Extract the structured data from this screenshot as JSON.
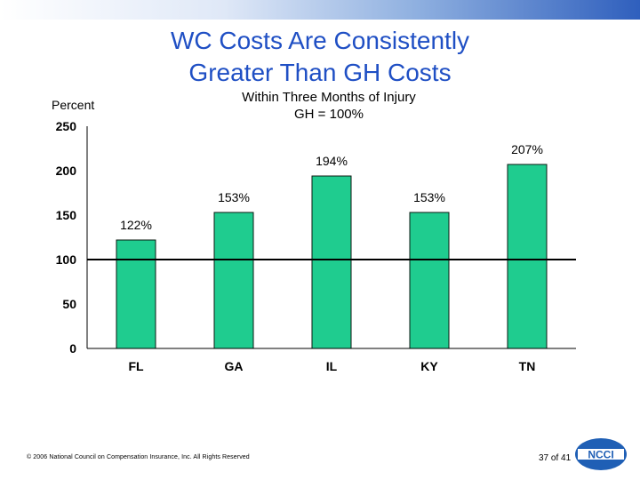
{
  "title_line1": "WC Costs Are Consistently",
  "title_line2": "Greater Than GH Costs",
  "subtitle_line1": "Within Three Months of Injury",
  "subtitle_line2": "GH = 100%",
  "y_axis_unit": "Percent",
  "footer": "© 2006 National Council on Compensation Insurance, Inc. All Rights Reserved",
  "page_number": "37 of 41",
  "logo_text": "NCCI",
  "colors": {
    "title": "#1f4fc4",
    "bar_fill": "#1fcc8f",
    "bar_stroke": "#0b1a12",
    "reference_line": "#000000",
    "logo": "#1f5fb5"
  },
  "chart_data": {
    "type": "bar",
    "categories": [
      "FL",
      "GA",
      "IL",
      "KY",
      "TN"
    ],
    "values": [
      122,
      153,
      194,
      153,
      207
    ],
    "data_labels": [
      "122%",
      "153%",
      "194%",
      "153%",
      "207%"
    ],
    "ylim": [
      0,
      250
    ],
    "yticks": [
      0,
      50,
      100,
      150,
      200,
      250
    ],
    "reference_line": 100,
    "grid": false,
    "legend": "none"
  }
}
